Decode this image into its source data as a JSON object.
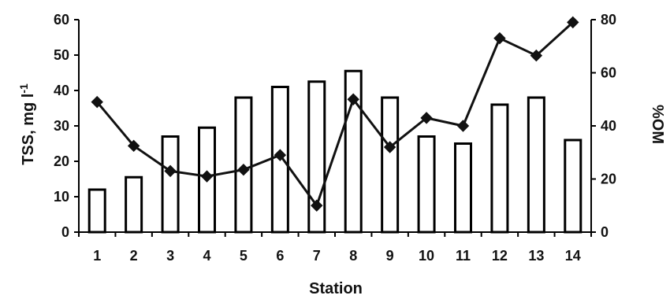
{
  "chart_data": {
    "type": "bar+line",
    "categories": [
      "1",
      "2",
      "3",
      "4",
      "5",
      "6",
      "7",
      "8",
      "9",
      "10",
      "11",
      "12",
      "13",
      "14"
    ],
    "xlabel": "Station",
    "ylabel_left": "TSS, mg l-1",
    "ylabel_right": "%OM",
    "ylim_left": [
      0,
      60
    ],
    "ylim_right": [
      0,
      80
    ],
    "yticks_left": [
      "0",
      "10",
      "20",
      "30",
      "40",
      "50",
      "60"
    ],
    "yticks_right": [
      "0",
      "20",
      "40",
      "60",
      "80"
    ],
    "grid": false,
    "series": [
      {
        "type": "bar",
        "axis": "left",
        "values": [
          12,
          15.5,
          27,
          29.5,
          38,
          41,
          42.5,
          45.5,
          38,
          27,
          25,
          36,
          38,
          26
        ]
      },
      {
        "type": "line",
        "axis": "right",
        "marker": "diamond",
        "values": [
          49,
          32.5,
          23,
          21,
          23.5,
          29,
          10,
          50,
          32,
          43,
          40,
          73,
          66.5,
          79
        ]
      }
    ]
  },
  "colors": {
    "bar_fill": "#ffffff",
    "bar_stroke": "#000000",
    "line": "#111111"
  }
}
